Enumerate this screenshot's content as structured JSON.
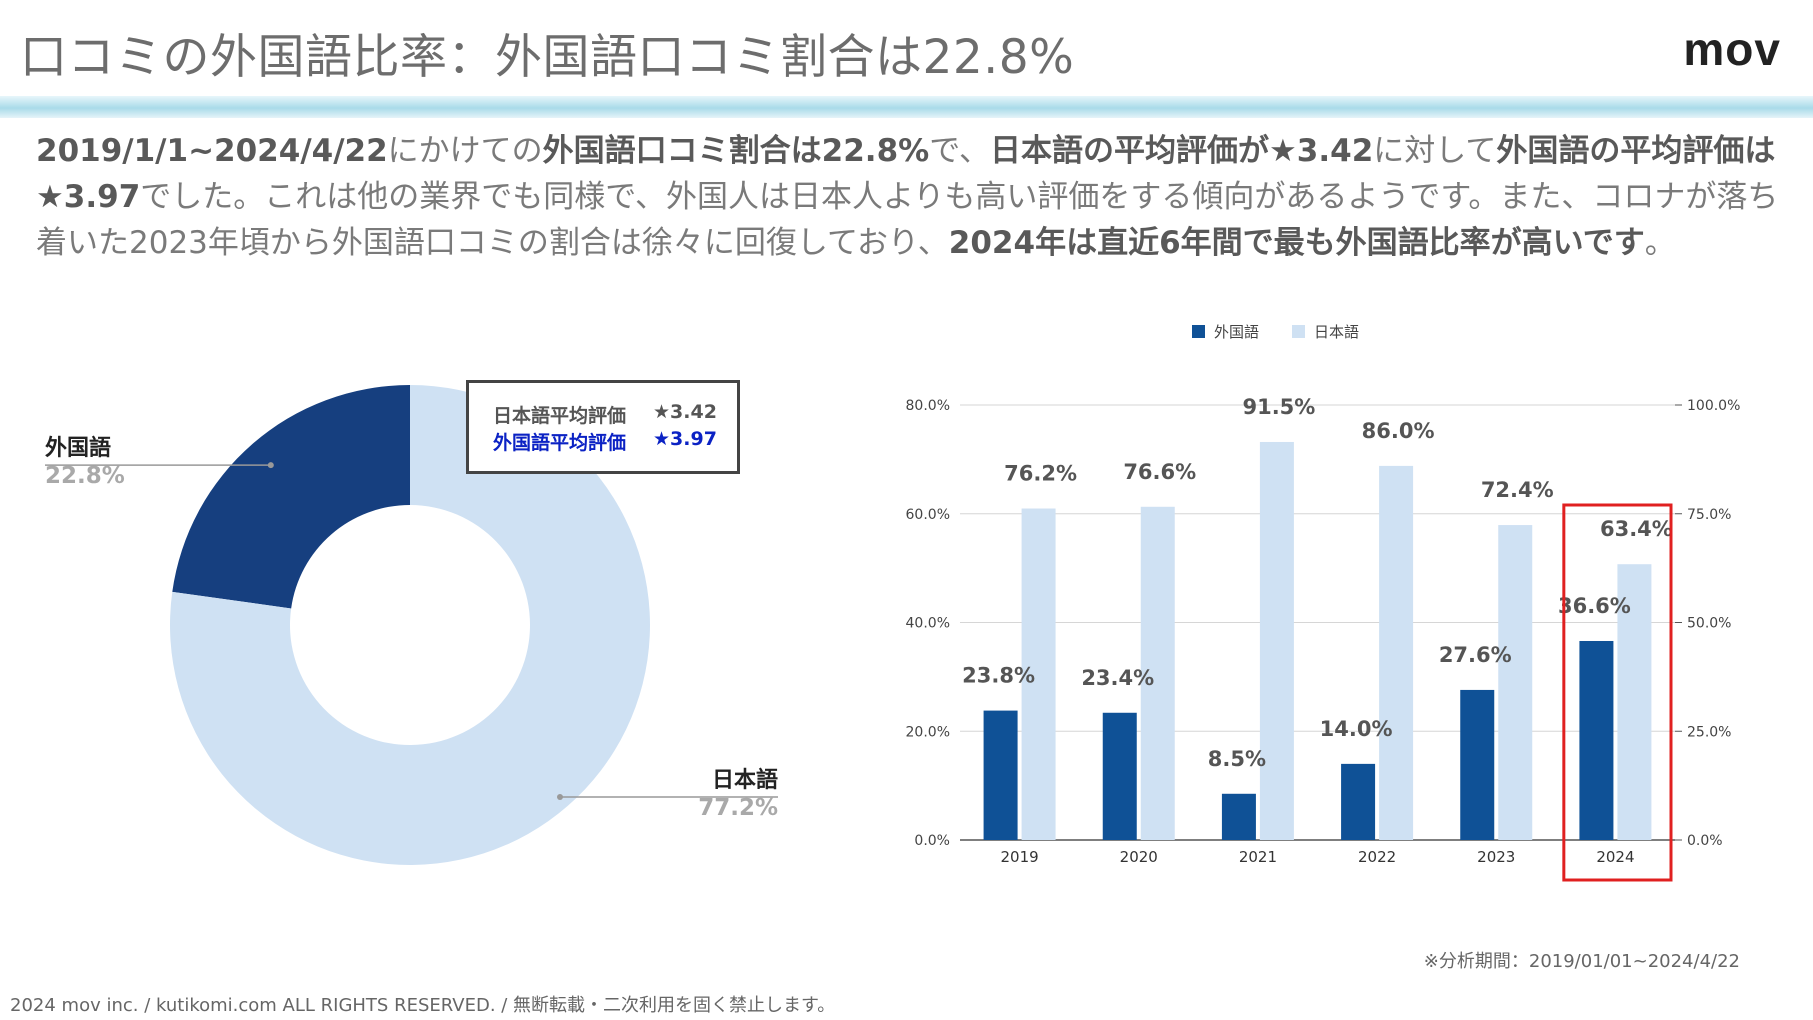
{
  "header": {
    "title": "口コミの外国語比率：外国語口コミ割合は22.8%",
    "logo": "mov"
  },
  "summary": {
    "segments": [
      {
        "text": "2019/1/1~2024/4/22",
        "bold": true
      },
      {
        "text": "にかけての",
        "bold": false
      },
      {
        "text": "外国語口コミ割合は22.8%",
        "bold": true
      },
      {
        "text": "で、",
        "bold": false
      },
      {
        "text": "日本語の平均評価が★3.42",
        "bold": true
      },
      {
        "text": "に対して",
        "bold": false
      },
      {
        "text": "外国語の平均評価は★3.97",
        "bold": true
      },
      {
        "text": "でした。これは他の業界でも同様で、外国人は日本人よりも高い評価をする傾向があるようです。また、コロナが落ち着いた2023年頃から外国語口コミの割合は徐々に回復しており、",
        "bold": false
      },
      {
        "text": "2024年は直近6年間で最も外国語比率が高いです",
        "bold": true
      },
      {
        "text": "。",
        "bold": false
      }
    ]
  },
  "rating_box": {
    "japanese_label": "日本語平均評価",
    "japanese_value": "★3.42",
    "foreign_label": "外国語平均評価",
    "foreign_value": "★3.97",
    "japanese_color": "#555555",
    "foreign_color": "#0b22c4"
  },
  "chart_data": [
    {
      "type": "pie",
      "style": "donut",
      "labels": [
        "外国語",
        "日本語"
      ],
      "values": [
        22.8,
        77.2
      ],
      "value_labels": [
        "22.8%",
        "77.2%"
      ],
      "colors": [
        "#163f7f",
        "#cfe1f3"
      ]
    },
    {
      "type": "bar",
      "categories": [
        "2019",
        "2020",
        "2021",
        "2022",
        "2023",
        "2024"
      ],
      "legend": [
        "外国語",
        "日本語"
      ],
      "legend_position": "top-center",
      "series": [
        {
          "name": "外国語",
          "axis": "left",
          "values": [
            23.8,
            23.4,
            8.5,
            14.0,
            27.6,
            36.6
          ],
          "value_labels": [
            "23.8%",
            "23.4%",
            "8.5%",
            "14.0%",
            "27.6%",
            "36.6%"
          ],
          "color": "#0f5196"
        },
        {
          "name": "日本語",
          "axis": "right",
          "values": [
            76.2,
            76.6,
            91.5,
            86.0,
            72.4,
            63.4
          ],
          "value_labels": [
            "76.2%",
            "76.6%",
            "91.5%",
            "86.0%",
            "72.4%",
            "63.4%"
          ],
          "color": "#cfe1f3"
        }
      ],
      "ylim_left": [
        0,
        80
      ],
      "ylim_right": [
        0,
        100
      ],
      "left_ticks": [
        "0.0%",
        "20.0%",
        "40.0%",
        "60.0%",
        "80.0%"
      ],
      "right_ticks": [
        "0.0%",
        "25.0%",
        "50.0%",
        "75.0%",
        "100.0%"
      ],
      "grid": true,
      "highlight_category": "2024",
      "highlight_color": "#e02020"
    }
  ],
  "note": "※分析期間：2019/01/01~2024/4/22",
  "footer": "2024 mov inc. / kutikomi.com ALL RIGHTS RESERVED. / 無断転載・二次利用を固く禁止します。"
}
